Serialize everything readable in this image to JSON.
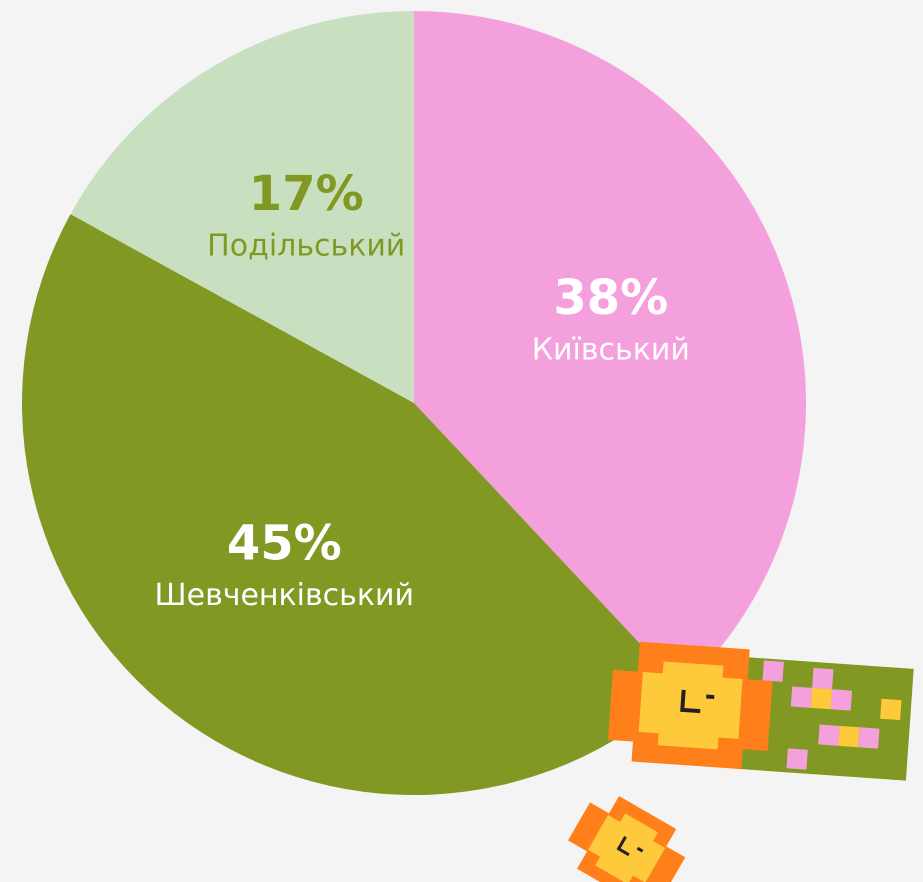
{
  "chart_data": {
    "type": "pie",
    "categories": [
      "Київський",
      "Шевченківський",
      "Подільський"
    ],
    "values": [
      38,
      45,
      17
    ],
    "value_labels": [
      "38%",
      "45%",
      "17%"
    ],
    "colors": [
      "#f4a0dc",
      "#819822",
      "#c8e0c0"
    ],
    "label_colors": [
      "#ffffff",
      "#ffffff",
      "#819822"
    ]
  }
}
